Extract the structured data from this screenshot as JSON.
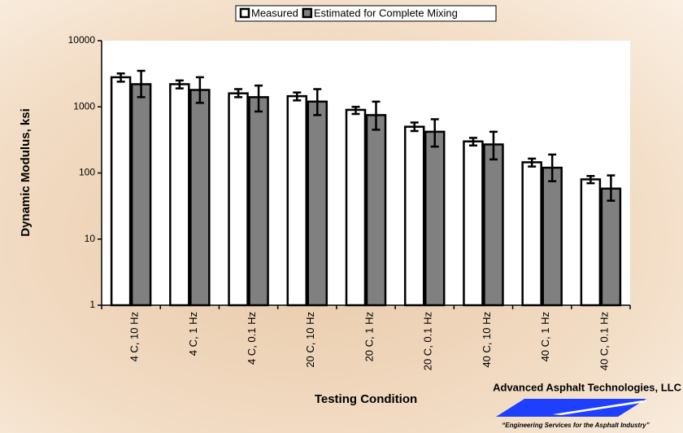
{
  "chart_data": {
    "type": "bar",
    "log_scale": true,
    "ylabel": "Dynamic Modulus, ksi",
    "xlabel": "Testing Condition",
    "categories": [
      "4 C, 10 Hz",
      "4 C, 1 Hz",
      "4 C, 0.1 Hz",
      "20 C, 10 Hz",
      "20 C, 1 Hz",
      "20 C, 0.1 Hz",
      "40 C, 10 Hz",
      "40 C, 1 Hz",
      "40 C, 0.1 Hz"
    ],
    "series": [
      {
        "name": "Measured",
        "color": "#ffffff",
        "values": [
          2800,
          2200,
          1600,
          1450,
          900,
          500,
          300,
          145,
          80
        ],
        "error_minus": [
          400,
          300,
          200,
          200,
          120,
          70,
          40,
          20,
          10
        ],
        "error_plus": [
          400,
          300,
          250,
          200,
          100,
          80,
          40,
          20,
          10
        ]
      },
      {
        "name": "Estimated for Complete Mixing",
        "color": "#808080",
        "values": [
          2200,
          1800,
          1400,
          1200,
          750,
          420,
          270,
          120,
          58
        ],
        "error_minus": [
          800,
          650,
          550,
          450,
          300,
          170,
          110,
          45,
          20
        ],
        "error_plus": [
          1300,
          1000,
          700,
          650,
          450,
          230,
          150,
          70,
          34
        ]
      }
    ],
    "ylim": [
      1,
      10000
    ],
    "yticks": [
      1,
      10,
      100,
      1000,
      10000
    ]
  },
  "footer": {
    "company": "Advanced Asphalt Technologies, LLC",
    "slogan": "“Engineering Services for the Asphalt Industry”"
  }
}
